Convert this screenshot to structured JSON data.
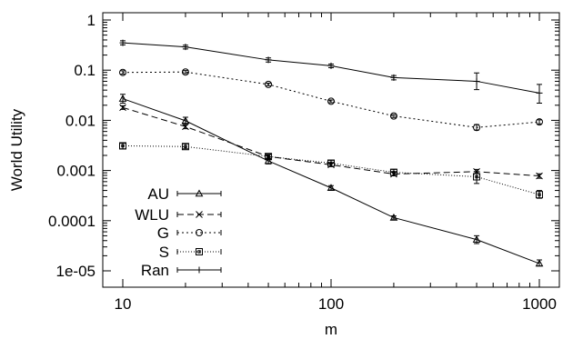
{
  "chart_data": {
    "type": "line",
    "xlabel": "m",
    "ylabel": "World Utility",
    "xscale": "log",
    "yscale": "log",
    "xlim": [
      10,
      1000
    ],
    "ylim": [
      1e-05,
      1
    ],
    "x_ticks": [
      {
        "v": 10,
        "label": "10"
      },
      {
        "v": 100,
        "label": "100"
      },
      {
        "v": 1000,
        "label": "1000"
      }
    ],
    "y_ticks": [
      {
        "v": 1,
        "label": "1"
      },
      {
        "v": 0.1,
        "label": "0.1"
      },
      {
        "v": 0.01,
        "label": "0.01"
      },
      {
        "v": 0.001,
        "label": "0.001"
      },
      {
        "v": 0.0001,
        "label": "0.0001"
      },
      {
        "v": 1e-05,
        "label": "1e-05"
      }
    ],
    "grid": false,
    "legend_position": "bottom-left",
    "x": [
      10,
      20,
      50,
      100,
      200,
      500,
      1000
    ],
    "series": [
      {
        "name": "AU",
        "marker": "triangle",
        "dash": "",
        "values": [
          0.027,
          0.0098,
          0.00155,
          0.00045,
          0.000115,
          4.2e-05,
          1.4e-05
        ],
        "err_low": [
          0.022,
          0.0083,
          0.00135,
          0.00041,
          0.000107,
          3.5e-05,
          1.25e-05
        ],
        "err_high": [
          0.033,
          0.0115,
          0.00175,
          0.0005,
          0.000124,
          5e-05,
          1.65e-05
        ]
      },
      {
        "name": "WLU",
        "marker": "x",
        "dash": "7,4",
        "values": [
          0.018,
          0.0075,
          0.0019,
          0.0013,
          0.00085,
          0.00095,
          0.00078
        ],
        "err_low": [
          0.0165,
          0.0068,
          0.0017,
          0.0012,
          0.00078,
          0.00087,
          0.0007
        ],
        "err_high": [
          0.0195,
          0.0082,
          0.0021,
          0.0014,
          0.00092,
          0.00105,
          0.00086
        ]
      },
      {
        "name": "G",
        "marker": "circle",
        "dash": "2,3",
        "values": [
          0.09,
          0.092,
          0.052,
          0.024,
          0.0122,
          0.0072,
          0.0093
        ],
        "err_low": [
          0.083,
          0.086,
          0.049,
          0.0225,
          0.0114,
          0.0064,
          0.0085
        ],
        "err_high": [
          0.097,
          0.098,
          0.055,
          0.0255,
          0.013,
          0.0082,
          0.0102
        ]
      },
      {
        "name": "S",
        "marker": "square",
        "dash": "1,2",
        "values": [
          0.0031,
          0.003,
          0.0019,
          0.0014,
          0.00092,
          0.00075,
          0.00033
        ],
        "err_low": [
          0.0027,
          0.0027,
          0.0017,
          0.0012,
          0.0008,
          0.00055,
          0.00028
        ],
        "err_high": [
          0.0035,
          0.0034,
          0.0021,
          0.0016,
          0.00105,
          0.00095,
          0.0004
        ]
      },
      {
        "name": "Ran",
        "marker": "plus",
        "dash": "",
        "values": [
          0.35,
          0.29,
          0.16,
          0.122,
          0.071,
          0.06,
          0.035
        ],
        "err_low": [
          0.32,
          0.265,
          0.145,
          0.112,
          0.064,
          0.041,
          0.022
        ],
        "err_high": [
          0.385,
          0.315,
          0.175,
          0.132,
          0.078,
          0.088,
          0.052
        ]
      }
    ]
  }
}
